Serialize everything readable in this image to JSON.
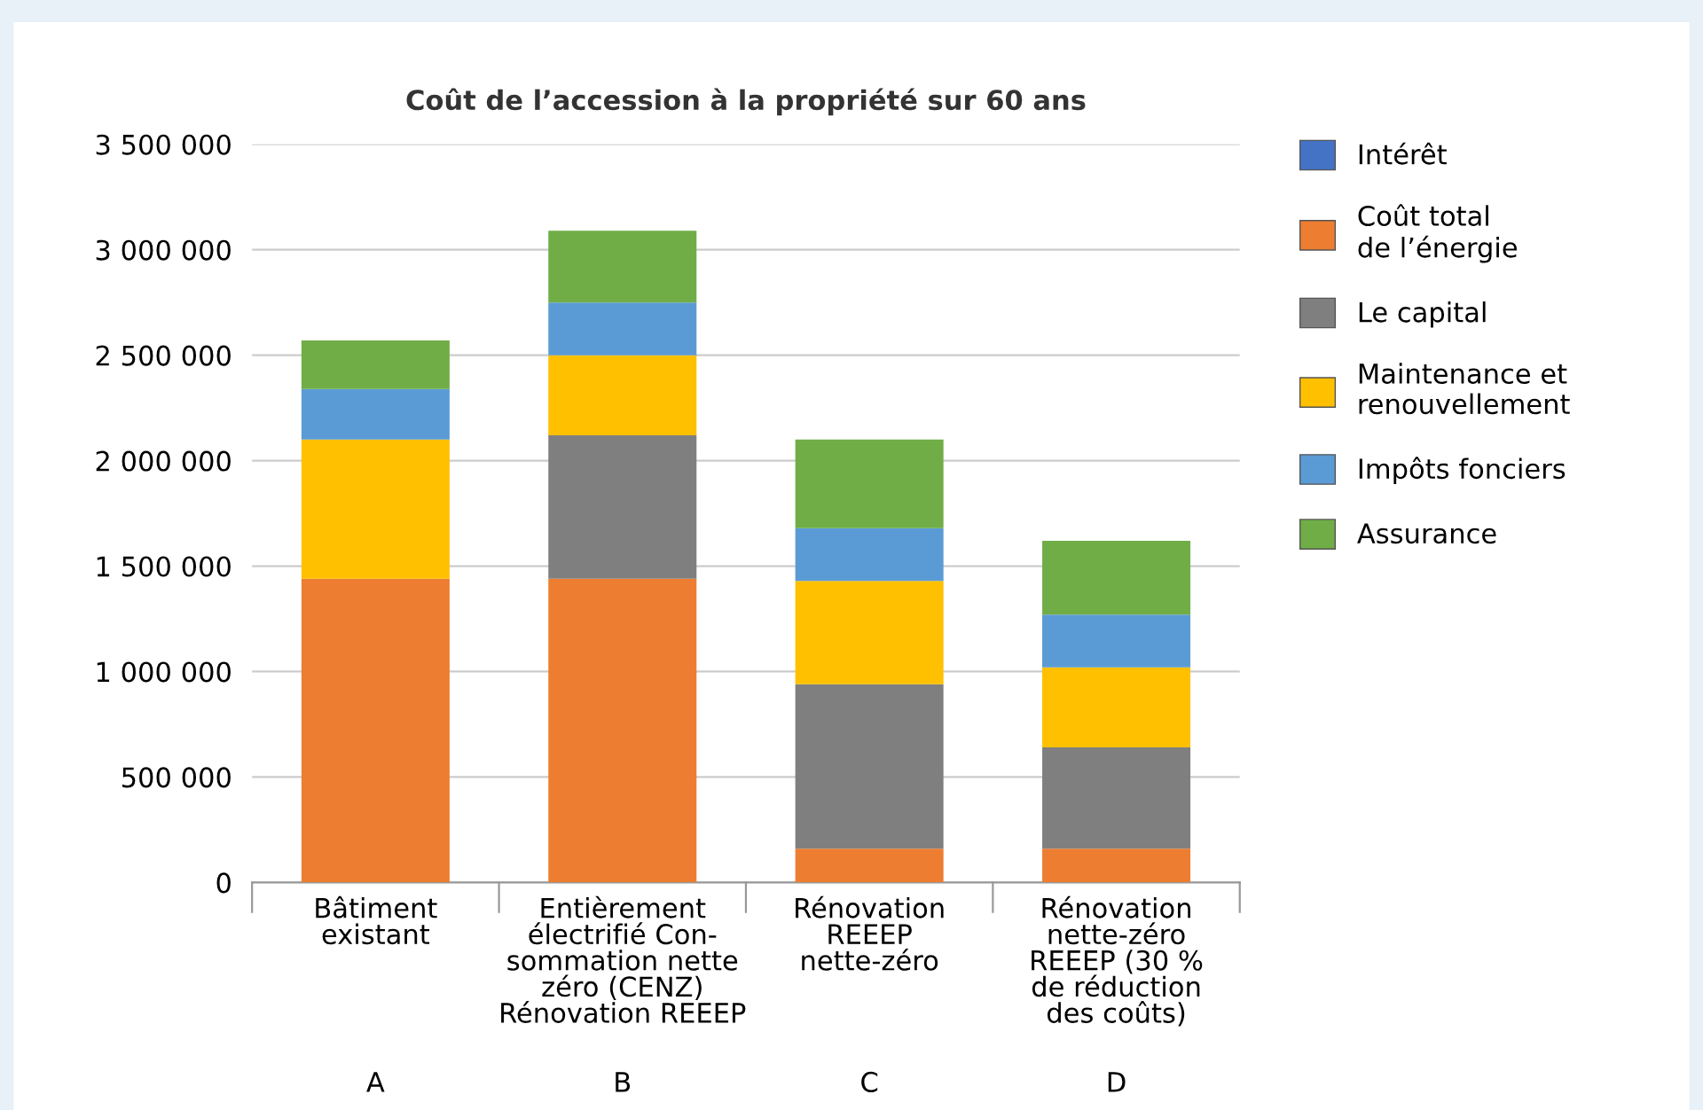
{
  "chart_data": {
    "type": "bar",
    "stacked": true,
    "title": "Coût de l’accession à la propriété sur 60 ans",
    "categories": [
      "Bâtiment\nexistant",
      "Entièrement\nélectrifié Con-\nsommation nette\nzéro (CENZ)\nRénovation REEEP",
      "Rénovation\nREEEP\nnette-zéro",
      "Rénovation\nnette-zéro\nREEEP (30 %\nde réduction\ndes coûts)"
    ],
    "series": [
      {
        "name": "Intérêt",
        "color": "#4472c4",
        "values": [
          0,
          0,
          0,
          0
        ]
      },
      {
        "name": "Coût total\nde l’énergie",
        "color": "#ed7d31",
        "values": [
          1440000,
          1440000,
          160000,
          160000
        ]
      },
      {
        "name": "Le capital",
        "color": "#7f7f7f",
        "values": [
          0,
          680000,
          780000,
          480000
        ]
      },
      {
        "name": "Maintenance et\nrenouvellement",
        "color": "#ffc000",
        "values": [
          660000,
          380000,
          490000,
          380000
        ]
      },
      {
        "name": "Impôts fonciers",
        "color": "#5b9bd5",
        "values": [
          240000,
          250000,
          250000,
          250000
        ]
      },
      {
        "name": "Assurance",
        "color": "#70ad47",
        "values": [
          230000,
          340000,
          420000,
          350000
        ]
      }
    ],
    "ylim": [
      0,
      3500000
    ],
    "yticks": [
      {
        "value": 0,
        "label": "0"
      },
      {
        "value": 500000,
        "label": "500 000"
      },
      {
        "value": 1000000,
        "label": "1 000 000"
      },
      {
        "value": 1500000,
        "label": "1 500 000"
      },
      {
        "value": 2000000,
        "label": "2 000 000"
      },
      {
        "value": 2500000,
        "label": "2 500 000"
      },
      {
        "value": 3000000,
        "label": "3 000 000"
      },
      {
        "value": 3500000,
        "label": "3 500 000"
      }
    ],
    "grid": "y",
    "legend": "right",
    "annotations": [
      "A",
      "B",
      "C",
      "D"
    ]
  }
}
